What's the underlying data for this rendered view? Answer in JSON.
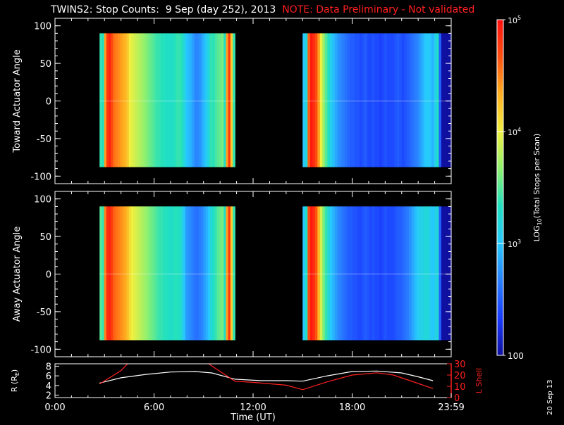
{
  "title": {
    "main": "TWINS2: Stop Counts:  9 Sep (day 252), 2013",
    "note": "NOTE: Data Preliminary - Not validated"
  },
  "datestamp": "20 Sep 13",
  "colors": {
    "background": "#000000",
    "axes": "#ffffff",
    "note": "#ff2020",
    "r_line": "#ffffff",
    "lshell_line": "#ff2020",
    "colormap": [
      "#1010a0",
      "#1a3cff",
      "#2a80ff",
      "#27c8ff",
      "#20e0c0",
      "#8ef070",
      "#f0f040",
      "#ffb020",
      "#ff5010",
      "#ff1010"
    ]
  },
  "chart_data": [
    {
      "type": "heatmap",
      "panel": "toward",
      "ylabel": "Toward Actuator Angle",
      "xlim": [
        0,
        24
      ],
      "ylim": [
        -110,
        110
      ],
      "yticks": [
        "-100",
        "-50",
        "0",
        "50",
        "100"
      ],
      "x_ticks_hours": [
        0,
        6,
        12,
        18,
        24
      ],
      "y_range_data": [
        -88,
        90
      ],
      "segments": [
        {
          "start_hour": 2.7,
          "end_hour": 10.9,
          "profile": [
            3.4,
            3.3,
            4.4,
            4.8,
            4.9,
            4.7,
            4.55,
            4.5,
            4.45,
            4.4,
            4.35,
            4.3,
            4.2,
            4.0,
            3.95,
            3.9,
            3.85,
            3.8,
            3.75,
            3.7,
            3.65,
            3.6,
            3.55,
            3.5,
            3.45,
            3.4,
            3.4,
            3.35,
            3.35,
            3.3,
            3.3,
            3.3,
            3.3,
            3.35,
            3.4,
            3.4,
            3.35,
            3.2,
            3.0,
            2.95,
            2.9,
            2.8,
            2.7,
            2.7,
            2.75,
            2.85,
            2.95,
            3.1,
            3.2,
            3.4,
            3.35,
            3.45,
            3.5,
            3.55,
            3.6,
            3.3,
            4.4,
            4.8,
            4.2,
            3.4
          ]
        },
        {
          "start_hour": 15.0,
          "end_hour": 24.0,
          "profile": [
            3.0,
            3.2,
            4.6,
            4.95,
            4.85,
            4.7,
            4.4,
            4.0,
            3.7,
            3.5,
            3.3,
            3.1,
            2.95,
            2.85,
            2.75,
            2.7,
            2.65,
            2.6,
            2.55,
            2.5,
            2.5,
            2.45,
            2.45,
            2.4,
            2.45,
            2.5,
            2.4,
            2.4,
            2.45,
            2.4,
            2.4,
            2.35,
            2.4,
            2.45,
            2.4,
            2.4,
            2.4,
            2.45,
            2.5,
            2.45,
            2.4,
            2.45,
            2.5,
            2.55,
            2.6,
            2.65,
            2.7,
            2.8,
            2.9,
            3.0,
            3.05,
            3.0,
            2.9,
            3.1,
            3.3,
            2.5,
            2.0,
            2.0,
            2.0,
            2.0
          ]
        }
      ]
    },
    {
      "type": "heatmap",
      "panel": "away",
      "ylabel": "Away Actuator Angle",
      "xlim": [
        0,
        24
      ],
      "ylim": [
        -110,
        110
      ],
      "yticks": [
        "-100",
        "-50",
        "0",
        "50",
        "100"
      ],
      "x_ticks_hours": [
        0,
        6,
        12,
        18,
        24
      ],
      "y_range_data": [
        -88,
        90
      ],
      "segments": [
        {
          "start_hour": 2.7,
          "end_hour": 10.9,
          "profile": [
            3.5,
            3.4,
            4.5,
            4.85,
            4.9,
            4.75,
            4.6,
            4.55,
            4.5,
            4.45,
            4.4,
            4.35,
            4.25,
            4.1,
            4.0,
            3.95,
            3.9,
            3.85,
            3.8,
            3.75,
            3.7,
            3.65,
            3.6,
            3.55,
            3.5,
            3.45,
            3.4,
            3.4,
            3.35,
            3.35,
            3.3,
            3.3,
            3.3,
            3.35,
            3.35,
            3.3,
            3.2,
            3.0,
            2.8,
            2.75,
            2.7,
            2.65,
            2.6,
            2.6,
            2.65,
            2.7,
            2.8,
            2.9,
            3.0,
            3.2,
            3.3,
            3.4,
            3.5,
            3.55,
            3.6,
            3.3,
            4.4,
            4.8,
            4.2,
            3.4
          ]
        },
        {
          "start_hour": 15.0,
          "end_hour": 24.0,
          "profile": [
            3.0,
            3.3,
            4.7,
            4.95,
            4.85,
            4.65,
            4.3,
            3.9,
            3.6,
            3.4,
            3.2,
            3.0,
            2.9,
            2.8,
            2.7,
            2.65,
            2.6,
            2.55,
            2.5,
            2.5,
            2.45,
            2.45,
            2.4,
            2.4,
            2.45,
            2.5,
            2.45,
            2.4,
            2.45,
            2.4,
            2.4,
            2.35,
            2.4,
            2.45,
            2.4,
            2.4,
            2.4,
            2.45,
            2.5,
            2.5,
            2.55,
            2.6,
            2.65,
            2.75,
            2.85,
            2.95,
            3.05,
            3.1,
            3.15,
            3.2,
            3.2,
            3.1,
            3.0,
            3.1,
            3.2,
            2.5,
            2.0,
            2.0,
            2.0,
            2.0
          ]
        }
      ]
    },
    {
      "type": "line",
      "panel": "ephemeris",
      "ylabel": "R (R",
      "ylabel_sub": "E",
      "ylabel_end": ")",
      "y2label": "L Shell",
      "xlabel": "Time (UT)",
      "xticks": [
        "0:00",
        "6:00",
        "12:00",
        "18:00",
        "23:59"
      ],
      "xlim": [
        0,
        24
      ],
      "ylim": [
        1.5,
        8.5
      ],
      "yticks": [
        "2",
        "4",
        "6",
        "8"
      ],
      "y2lim": [
        0,
        30
      ],
      "y2ticks": [
        "0",
        "10",
        "20",
        "30"
      ],
      "series": [
        {
          "axis": "left",
          "x": [
            2.7,
            4.0,
            5.5,
            7.0,
            8.5,
            9.5,
            10.9,
            12.5,
            14.0,
            15.0,
            16.5,
            18.0,
            19.5,
            21.0,
            22.0,
            22.9
          ],
          "y": [
            4.5,
            5.6,
            6.3,
            6.8,
            6.9,
            6.6,
            5.3,
            5.0,
            5.0,
            4.9,
            6.0,
            6.9,
            7.0,
            6.6,
            5.8,
            5.0
          ]
        },
        {
          "axis": "right",
          "x": [
            2.7,
            4.0,
            4.4
          ],
          "y": [
            12,
            24,
            30
          ]
        },
        {
          "axis": "right",
          "x": [
            9.3,
            10.9,
            12.0,
            14.0,
            15.0,
            16.5,
            18.0,
            19.5,
            20.5,
            21.5,
            22.9
          ],
          "y": [
            30,
            14.5,
            13.5,
            11,
            7,
            14,
            20,
            22,
            20,
            15,
            8
          ]
        }
      ]
    },
    {
      "type": "colorbar",
      "label_prefix": "LOG",
      "label_sub": "10",
      "label_rest": "(Total Stops per Scan)",
      "range_log10": [
        2,
        5
      ],
      "ticks": [
        {
          "log10": 2,
          "label": "100"
        },
        {
          "log10": 3,
          "label": "10",
          "sup": "3"
        },
        {
          "log10": 4,
          "label": "10",
          "sup": "4"
        },
        {
          "log10": 5,
          "label": "10",
          "sup": "5"
        }
      ]
    }
  ]
}
